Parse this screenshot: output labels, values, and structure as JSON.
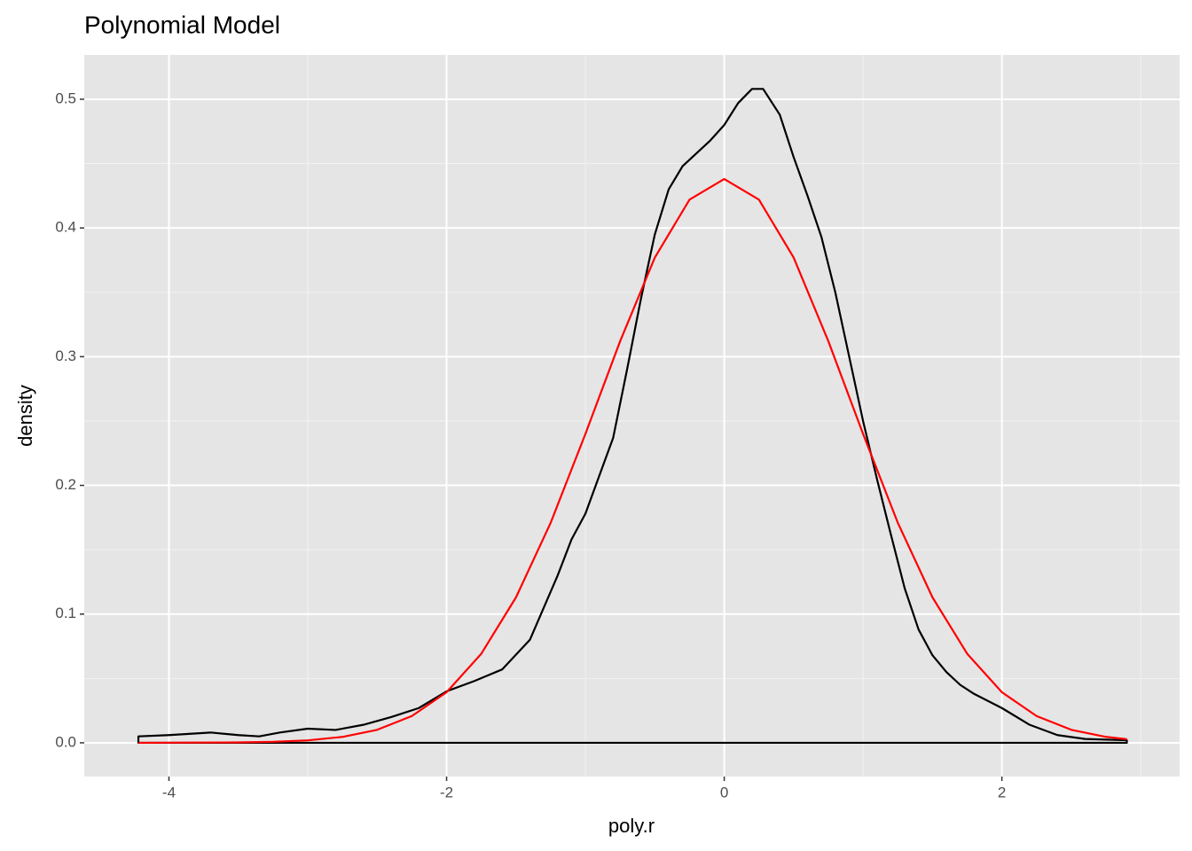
{
  "chart_data": {
    "type": "line",
    "title": "Polynomial Model",
    "x_label": "poly.r",
    "y_label": "density",
    "xlim": [
      -4.61,
      3.28
    ],
    "ylim": [
      -0.0262,
      0.5344
    ],
    "xticks": [
      -4,
      -2,
      0,
      2
    ],
    "yticks": [
      {
        "value": 0,
        "label": "0.0"
      },
      0.1,
      0.2,
      0.3,
      0.4,
      0.5
    ],
    "x_minor_ticks": [
      -3,
      -1,
      1,
      3
    ],
    "y_minor_ticks": [
      0.05,
      0.15,
      0.25,
      0.35,
      0.45
    ],
    "grid": true,
    "series": [
      {
        "color": "#000000",
        "closed": true,
        "x": [
          -4.22,
          -4.22,
          -4.0,
          -3.7,
          -3.5,
          -3.35,
          -3.2,
          -3.0,
          -2.8,
          -2.6,
          -2.4,
          -2.2,
          -2.0,
          -1.8,
          -1.6,
          -1.4,
          -1.2,
          -1.1,
          -1.0,
          -0.8,
          -0.7,
          -0.6,
          -0.5,
          -0.4,
          -0.3,
          -0.2,
          -0.1,
          0.0,
          0.1,
          0.2,
          0.28,
          0.4,
          0.5,
          0.6,
          0.7,
          0.8,
          0.9,
          1.0,
          1.1,
          1.2,
          1.3,
          1.4,
          1.5,
          1.6,
          1.7,
          1.8,
          2.0,
          2.2,
          2.4,
          2.6,
          2.9,
          2.9
        ],
        "values": [
          0,
          0.005,
          0.006,
          0.008,
          0.006,
          0.005,
          0.008,
          0.011,
          0.01,
          0.014,
          0.02,
          0.027,
          0.04,
          0.048,
          0.057,
          0.08,
          0.13,
          0.158,
          0.178,
          0.237,
          0.29,
          0.345,
          0.395,
          0.43,
          0.448,
          0.458,
          0.468,
          0.48,
          0.497,
          0.508,
          0.508,
          0.488,
          0.455,
          0.425,
          0.393,
          0.35,
          0.3,
          0.25,
          0.205,
          0.162,
          0.12,
          0.088,
          0.068,
          0.055,
          0.045,
          0.038,
          0.027,
          0.014,
          0.006,
          0.003,
          0.002,
          0
        ]
      },
      {
        "color": "#ff0000",
        "closed": false,
        "x": [
          -4.22,
          -3.5,
          -3.25,
          -3.0,
          -2.75,
          -2.5,
          -2.25,
          -2.0,
          -1.75,
          -1.5,
          -1.25,
          -1.0,
          -0.75,
          -0.5,
          -0.25,
          0,
          0.25,
          0.5,
          0.75,
          1.0,
          1.25,
          1.5,
          1.75,
          2.0,
          2.25,
          2.5,
          2.75,
          2.9
        ],
        "values": [
          0,
          0.0003,
          0.0008,
          0.0019,
          0.0046,
          0.0101,
          0.0208,
          0.0393,
          0.0692,
          0.113,
          0.171,
          0.24,
          0.312,
          0.377,
          0.422,
          0.438,
          0.422,
          0.377,
          0.312,
          0.24,
          0.171,
          0.113,
          0.0692,
          0.0393,
          0.0208,
          0.0101,
          0.0046,
          0.0028
        ]
      }
    ]
  }
}
